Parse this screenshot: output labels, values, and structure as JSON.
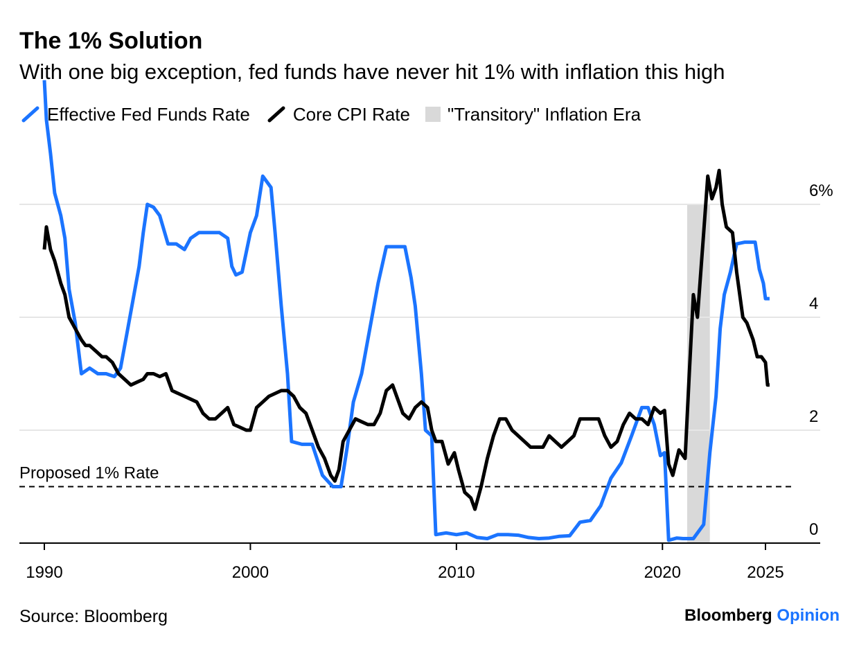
{
  "title": "The 1% Solution",
  "subtitle": "With one big exception, fed funds have never hit 1% with inflation this high",
  "source": "Source: Bloomberg",
  "brand": {
    "name": "Bloomberg",
    "section": "Opinion"
  },
  "colors": {
    "fed_funds": "#1b74ff",
    "core_cpi": "#000000",
    "shade": "#d9d9d9",
    "grid": "#e6e6e6"
  },
  "legend": {
    "fed_funds": "Effective Fed Funds Rate",
    "core_cpi": "Core CPI Rate",
    "transitory": "\"Transitory\" Inflation Era"
  },
  "chart_data": {
    "type": "line",
    "title": "The 1% Solution",
    "subtitle": "With one big exception, fed funds have never hit 1% with inflation this high",
    "xlim": [
      1988.9,
      2028.8
    ],
    "ylim": [
      0,
      7.3
    ],
    "x_ticks": [
      1990,
      2000,
      2010,
      2020,
      2025
    ],
    "x_tick_labels": [
      "1990",
      "2000",
      "2010",
      "2020",
      "2025"
    ],
    "y_ticks": [
      0,
      2,
      4,
      6
    ],
    "y_tick_labels": [
      "0",
      "2",
      "4",
      "6%"
    ],
    "grid": true,
    "legend_position": "top",
    "reference_line": {
      "y": 1.0,
      "label": "Proposed 1% Rate",
      "style": "dashed"
    },
    "shaded_region": {
      "x_start": 2021.2,
      "x_end": 2022.3,
      "label": "\"Transitory\" Inflation Era"
    },
    "series": [
      {
        "name": "Effective Fed Funds Rate",
        "key": "fed_funds",
        "points": [
          [
            1990.0,
            8.2
          ],
          [
            1990.1,
            7.5
          ],
          [
            1990.3,
            6.9
          ],
          [
            1990.5,
            6.2
          ],
          [
            1990.8,
            5.8
          ],
          [
            1991.0,
            5.4
          ],
          [
            1991.2,
            4.5
          ],
          [
            1991.5,
            3.9
          ],
          [
            1991.8,
            3.0
          ],
          [
            1992.2,
            3.1
          ],
          [
            1992.6,
            3.0
          ],
          [
            1993.0,
            3.0
          ],
          [
            1993.4,
            2.95
          ],
          [
            1993.7,
            3.1
          ],
          [
            1994.0,
            3.7
          ],
          [
            1994.3,
            4.3
          ],
          [
            1994.6,
            4.9
          ],
          [
            1994.8,
            5.5
          ],
          [
            1995.0,
            6.0
          ],
          [
            1995.3,
            5.95
          ],
          [
            1995.6,
            5.8
          ],
          [
            1996.0,
            5.3
          ],
          [
            1996.4,
            5.3
          ],
          [
            1996.8,
            5.2
          ],
          [
            1997.1,
            5.4
          ],
          [
            1997.5,
            5.5
          ],
          [
            1998.0,
            5.5
          ],
          [
            1998.5,
            5.5
          ],
          [
            1998.9,
            5.4
          ],
          [
            1999.1,
            4.9
          ],
          [
            1999.3,
            4.75
          ],
          [
            1999.6,
            4.8
          ],
          [
            2000.0,
            5.5
          ],
          [
            2000.3,
            5.8
          ],
          [
            2000.6,
            6.5
          ],
          [
            2001.0,
            6.3
          ],
          [
            2001.2,
            5.5
          ],
          [
            2001.5,
            4.2
          ],
          [
            2001.8,
            3.0
          ],
          [
            2002.0,
            1.8
          ],
          [
            2002.5,
            1.75
          ],
          [
            2003.0,
            1.75
          ],
          [
            2003.5,
            1.2
          ],
          [
            2004.0,
            1.0
          ],
          [
            2004.4,
            1.0
          ],
          [
            2004.7,
            1.7
          ],
          [
            2005.0,
            2.5
          ],
          [
            2005.4,
            3.0
          ],
          [
            2005.8,
            3.8
          ],
          [
            2006.2,
            4.6
          ],
          [
            2006.6,
            5.25
          ],
          [
            2007.0,
            5.25
          ],
          [
            2007.5,
            5.25
          ],
          [
            2007.8,
            4.7
          ],
          [
            2008.0,
            4.2
          ],
          [
            2008.3,
            3.0
          ],
          [
            2008.5,
            2.0
          ],
          [
            2008.8,
            1.9
          ],
          [
            2009.0,
            0.15
          ],
          [
            2009.5,
            0.18
          ],
          [
            2010.0,
            0.15
          ],
          [
            2010.5,
            0.18
          ],
          [
            2011.0,
            0.1
          ],
          [
            2011.5,
            0.08
          ],
          [
            2012.0,
            0.15
          ],
          [
            2012.5,
            0.15
          ],
          [
            2013.0,
            0.14
          ],
          [
            2013.5,
            0.1
          ],
          [
            2014.0,
            0.08
          ],
          [
            2014.5,
            0.09
          ],
          [
            2015.0,
            0.12
          ],
          [
            2015.5,
            0.13
          ],
          [
            2016.0,
            0.37
          ],
          [
            2016.5,
            0.4
          ],
          [
            2017.0,
            0.66
          ],
          [
            2017.5,
            1.15
          ],
          [
            2018.0,
            1.42
          ],
          [
            2018.5,
            1.9
          ],
          [
            2019.0,
            2.4
          ],
          [
            2019.3,
            2.4
          ],
          [
            2019.6,
            2.1
          ],
          [
            2019.9,
            1.55
          ],
          [
            2020.1,
            1.6
          ],
          [
            2020.3,
            0.05
          ],
          [
            2020.7,
            0.09
          ],
          [
            2021.0,
            0.08
          ],
          [
            2021.5,
            0.08
          ],
          [
            2022.0,
            0.33
          ],
          [
            2022.3,
            1.6
          ],
          [
            2022.6,
            2.6
          ],
          [
            2022.8,
            3.8
          ],
          [
            2023.0,
            4.4
          ],
          [
            2023.3,
            4.8
          ],
          [
            2023.6,
            5.3
          ],
          [
            2024.0,
            5.33
          ],
          [
            2024.5,
            5.33
          ],
          [
            2024.7,
            4.85
          ],
          [
            2024.9,
            4.6
          ],
          [
            2025.0,
            4.33
          ],
          [
            2025.2,
            4.33
          ]
        ]
      },
      {
        "name": "Core CPI Rate",
        "key": "core_cpi",
        "points": [
          [
            1990.0,
            5.2
          ],
          [
            1990.1,
            5.6
          ],
          [
            1990.3,
            5.2
          ],
          [
            1990.5,
            5.0
          ],
          [
            1990.8,
            4.6
          ],
          [
            1991.0,
            4.4
          ],
          [
            1991.2,
            4.0
          ],
          [
            1991.5,
            3.8
          ],
          [
            1991.8,
            3.6
          ],
          [
            1992.0,
            3.5
          ],
          [
            1992.2,
            3.5
          ],
          [
            1992.5,
            3.4
          ],
          [
            1992.8,
            3.3
          ],
          [
            1993.0,
            3.3
          ],
          [
            1993.3,
            3.2
          ],
          [
            1993.6,
            3.0
          ],
          [
            1993.9,
            2.9
          ],
          [
            1994.2,
            2.8
          ],
          [
            1994.5,
            2.85
          ],
          [
            1994.8,
            2.9
          ],
          [
            1995.0,
            3.0
          ],
          [
            1995.3,
            3.0
          ],
          [
            1995.6,
            2.95
          ],
          [
            1995.9,
            3.0
          ],
          [
            1996.2,
            2.7
          ],
          [
            1996.5,
            2.65
          ],
          [
            1996.8,
            2.6
          ],
          [
            1997.1,
            2.55
          ],
          [
            1997.4,
            2.5
          ],
          [
            1997.7,
            2.3
          ],
          [
            1998.0,
            2.2
          ],
          [
            1998.3,
            2.2
          ],
          [
            1998.6,
            2.3
          ],
          [
            1998.9,
            2.4
          ],
          [
            1999.2,
            2.1
          ],
          [
            1999.5,
            2.05
          ],
          [
            1999.8,
            2.0
          ],
          [
            2000.0,
            2.0
          ],
          [
            2000.3,
            2.4
          ],
          [
            2000.6,
            2.5
          ],
          [
            2000.9,
            2.6
          ],
          [
            2001.2,
            2.65
          ],
          [
            2001.5,
            2.7
          ],
          [
            2001.8,
            2.7
          ],
          [
            2002.1,
            2.6
          ],
          [
            2002.4,
            2.4
          ],
          [
            2002.7,
            2.3
          ],
          [
            2003.0,
            2.0
          ],
          [
            2003.3,
            1.7
          ],
          [
            2003.6,
            1.5
          ],
          [
            2003.9,
            1.2
          ],
          [
            2004.1,
            1.1
          ],
          [
            2004.3,
            1.3
          ],
          [
            2004.5,
            1.8
          ],
          [
            2004.8,
            2.0
          ],
          [
            2005.1,
            2.2
          ],
          [
            2005.4,
            2.15
          ],
          [
            2005.7,
            2.1
          ],
          [
            2006.0,
            2.1
          ],
          [
            2006.3,
            2.3
          ],
          [
            2006.6,
            2.7
          ],
          [
            2006.9,
            2.8
          ],
          [
            2007.1,
            2.6
          ],
          [
            2007.4,
            2.3
          ],
          [
            2007.7,
            2.2
          ],
          [
            2008.0,
            2.4
          ],
          [
            2008.3,
            2.5
          ],
          [
            2008.6,
            2.4
          ],
          [
            2008.8,
            2.0
          ],
          [
            2009.0,
            1.8
          ],
          [
            2009.3,
            1.8
          ],
          [
            2009.6,
            1.4
          ],
          [
            2009.9,
            1.6
          ],
          [
            2010.1,
            1.3
          ],
          [
            2010.4,
            0.9
          ],
          [
            2010.7,
            0.8
          ],
          [
            2010.9,
            0.6
          ],
          [
            2011.2,
            1.0
          ],
          [
            2011.5,
            1.5
          ],
          [
            2011.8,
            1.9
          ],
          [
            2012.1,
            2.2
          ],
          [
            2012.4,
            2.2
          ],
          [
            2012.7,
            2.0
          ],
          [
            2013.0,
            1.9
          ],
          [
            2013.3,
            1.8
          ],
          [
            2013.6,
            1.7
          ],
          [
            2013.9,
            1.7
          ],
          [
            2014.2,
            1.7
          ],
          [
            2014.5,
            1.9
          ],
          [
            2014.8,
            1.8
          ],
          [
            2015.1,
            1.7
          ],
          [
            2015.4,
            1.8
          ],
          [
            2015.7,
            1.9
          ],
          [
            2016.0,
            2.2
          ],
          [
            2016.3,
            2.2
          ],
          [
            2016.6,
            2.2
          ],
          [
            2016.9,
            2.2
          ],
          [
            2017.2,
            1.9
          ],
          [
            2017.5,
            1.7
          ],
          [
            2017.8,
            1.8
          ],
          [
            2018.1,
            2.1
          ],
          [
            2018.4,
            2.3
          ],
          [
            2018.7,
            2.2
          ],
          [
            2019.0,
            2.2
          ],
          [
            2019.3,
            2.1
          ],
          [
            2019.6,
            2.4
          ],
          [
            2019.9,
            2.3
          ],
          [
            2020.1,
            2.35
          ],
          [
            2020.3,
            1.4
          ],
          [
            2020.5,
            1.2
          ],
          [
            2020.8,
            1.65
          ],
          [
            2021.1,
            1.5
          ],
          [
            2021.3,
            3.0
          ],
          [
            2021.5,
            4.4
          ],
          [
            2021.7,
            4.0
          ],
          [
            2022.0,
            5.5
          ],
          [
            2022.2,
            6.5
          ],
          [
            2022.4,
            6.1
          ],
          [
            2022.6,
            6.3
          ],
          [
            2022.75,
            6.6
          ],
          [
            2022.9,
            6.0
          ],
          [
            2023.1,
            5.6
          ],
          [
            2023.4,
            5.5
          ],
          [
            2023.6,
            4.8
          ],
          [
            2023.9,
            4.0
          ],
          [
            2024.1,
            3.9
          ],
          [
            2024.4,
            3.6
          ],
          [
            2024.6,
            3.3
          ],
          [
            2024.8,
            3.3
          ],
          [
            2025.0,
            3.2
          ],
          [
            2025.1,
            2.8
          ],
          [
            2025.2,
            2.8
          ]
        ]
      }
    ]
  }
}
